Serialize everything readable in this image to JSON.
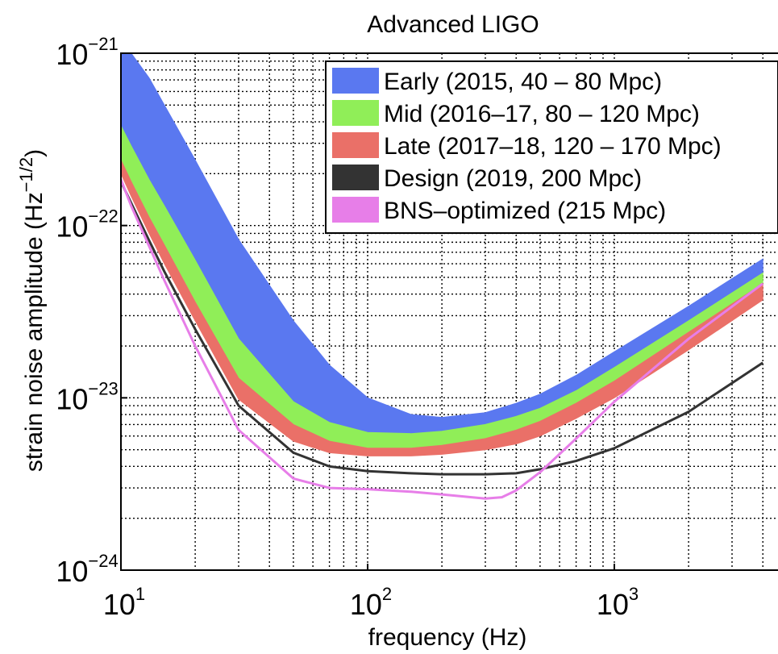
{
  "chart_data": {
    "type": "area",
    "title": "Advanced LIGO",
    "xlabel": "frequency (Hz)",
    "ylabel": "strain noise amplitude (Hz",
    "ylabel_exp": "−1/2",
    "ylabel_close": ")",
    "xscale": "log",
    "yscale": "log",
    "xlim": [
      10,
      4000
    ],
    "ylim": [
      1e-24,
      1e-21
    ],
    "grid": true,
    "legend_position": "top-right",
    "x_ticks": [
      {
        "base": "10",
        "exp": "1",
        "value": 10
      },
      {
        "base": "10",
        "exp": "2",
        "value": 100
      },
      {
        "base": "10",
        "exp": "3",
        "value": 1000
      }
    ],
    "y_ticks": [
      {
        "base": "10",
        "exp": "−21",
        "value": 1e-21
      },
      {
        "base": "10",
        "exp": "−22",
        "value": 1e-22
      },
      {
        "base": "10",
        "exp": "−23",
        "value": 1e-23
      },
      {
        "base": "10",
        "exp": "−24",
        "value": 1e-24
      }
    ],
    "series": [
      {
        "name": "Early (2015, 40 – 80 Mpc)",
        "kind": "band",
        "color": "#5a78f0",
        "x": [
          10,
          11,
          13,
          15,
          20,
          30,
          50,
          70,
          100,
          150,
          200,
          300,
          400,
          500,
          700,
          1000,
          2000,
          4000
        ],
        "upper": [
          1.2e-21,
          1e-21,
          7.2e-22,
          5e-22,
          2.4e-22,
          8.3e-23,
          2.8e-23,
          1.55e-23,
          1e-23,
          8e-24,
          7.7e-24,
          8.2e-24,
          9.3e-24,
          1.05e-23,
          1.35e-23,
          1.85e-23,
          3.4e-23,
          6.4e-23
        ],
        "lower": [
          3.8e-22,
          2.9e-22,
          1.85e-22,
          1.3e-22,
          6.3e-23,
          2.2e-23,
          9.5e-24,
          7.2e-24,
          6.3e-24,
          6.2e-24,
          6.4e-24,
          7e-24,
          7.8e-24,
          8.7e-24,
          1.1e-23,
          1.5e-23,
          2.8e-23,
          5.3e-23
        ]
      },
      {
        "name": "Mid (2016–17, 80 – 120 Mpc)",
        "kind": "band",
        "color": "#90ee58",
        "x": [
          10,
          11,
          13,
          15,
          20,
          30,
          50,
          70,
          100,
          150,
          200,
          300,
          400,
          500,
          700,
          1000,
          2000,
          4000
        ],
        "upper": [
          3.8e-22,
          2.9e-22,
          1.85e-22,
          1.3e-22,
          6.3e-23,
          2.2e-23,
          9.5e-24,
          7.2e-24,
          6.3e-24,
          6.2e-24,
          6.4e-24,
          7e-24,
          7.8e-24,
          8.7e-24,
          1.1e-23,
          1.5e-23,
          2.8e-23,
          5.3e-23
        ],
        "lower": [
          2.4e-22,
          1.8e-22,
          1.12e-22,
          7.7e-23,
          3.6e-23,
          1.3e-23,
          7e-24,
          5.6e-24,
          5.1e-24,
          5.1e-24,
          5.3e-24,
          5.8e-24,
          6.5e-24,
          7.3e-24,
          9.3e-24,
          1.25e-23,
          2.4e-23,
          4.6e-23
        ]
      },
      {
        "name": "Late (2017–18, 120 – 170 Mpc)",
        "kind": "band",
        "color": "#ea7068",
        "x": [
          10,
          11,
          13,
          15,
          20,
          30,
          50,
          70,
          100,
          150,
          200,
          300,
          400,
          500,
          700,
          1000,
          2000,
          4000
        ],
        "upper": [
          2.4e-22,
          1.8e-22,
          1.12e-22,
          7.7e-23,
          3.6e-23,
          1.3e-23,
          7e-24,
          5.6e-24,
          5.1e-24,
          5.1e-24,
          5.3e-24,
          5.8e-24,
          6.5e-24,
          7.3e-24,
          9.3e-24,
          1.25e-23,
          2.4e-23,
          4.6e-23
        ],
        "lower": [
          2e-22,
          1.48e-22,
          9e-23,
          6e-23,
          2.8e-23,
          9.8e-24,
          5.6e-24,
          4.8e-24,
          4.6e-24,
          4.6e-24,
          4.7e-24,
          5e-24,
          5.4e-24,
          6e-24,
          7.6e-24,
          1e-23,
          1.9e-23,
          3.7e-23
        ]
      },
      {
        "name": "Design (2019, 200 Mpc)",
        "kind": "line",
        "color": "#333333",
        "x": [
          10,
          11,
          13,
          15,
          20,
          30,
          50,
          70,
          100,
          150,
          200,
          300,
          400,
          500,
          700,
          1000,
          2000,
          4000
        ],
        "y": [
          1.8e-22,
          1.35e-22,
          8.2e-23,
          5.4e-23,
          2.5e-23,
          9e-24,
          4.8e-24,
          4e-24,
          3.75e-24,
          3.65e-24,
          3.6e-24,
          3.6e-24,
          3.65e-24,
          3.85e-24,
          4.3e-24,
          5.1e-24,
          8.3e-24,
          1.6e-23
        ]
      },
      {
        "name": "BNS–optimized (215 Mpc)",
        "kind": "line",
        "color": "#e77ee8",
        "x": [
          10,
          11,
          13,
          15,
          20,
          30,
          50,
          70,
          100,
          150,
          200,
          300,
          350,
          400,
          500,
          700,
          1000,
          2000,
          4000
        ],
        "y": [
          1.85e-22,
          1.3e-22,
          7.6e-23,
          4.8e-23,
          2e-23,
          6.5e-24,
          3.4e-24,
          3e-24,
          2.95e-24,
          2.85e-24,
          2.75e-24,
          2.6e-24,
          2.65e-24,
          2.9e-24,
          3.7e-24,
          5.8e-24,
          9.5e-24,
          2.2e-23,
          4.6e-23
        ]
      }
    ]
  }
}
